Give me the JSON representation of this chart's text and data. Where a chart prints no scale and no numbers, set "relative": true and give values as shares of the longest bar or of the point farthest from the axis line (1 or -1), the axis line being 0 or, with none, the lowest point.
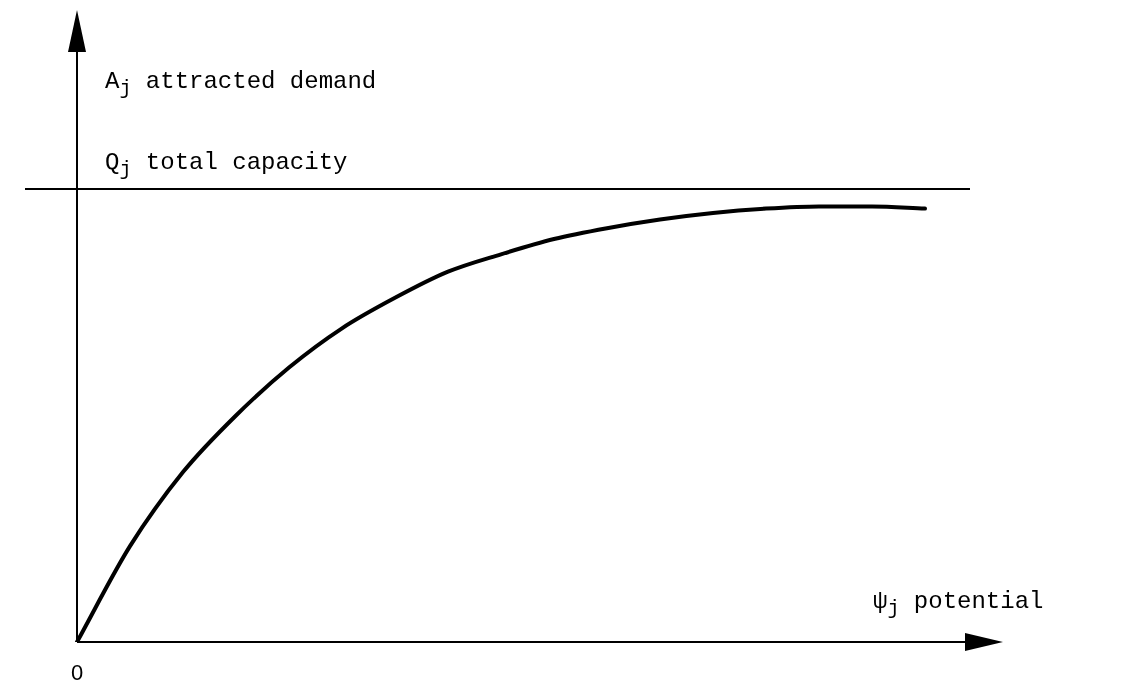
{
  "chart_data": {
    "type": "line",
    "relative": true,
    "xlabel": "ψ$_{j}$ potential",
    "ylabel": "A$_{j}$ attracted demand",
    "categories": [
      null,
      null,
      null,
      null,
      null,
      null,
      null,
      null,
      null,
      null,
      null,
      null,
      null,
      null,
      null,
      null,
      null
    ],
    "values": [
      0,
      0.22,
      0.39,
      0.52,
      0.63,
      0.72,
      0.79,
      0.85,
      0.89,
      0.925,
      0.95,
      0.97,
      0.985,
      0.995,
      1.0,
      1.0,
      0.995
    ],
    "color": "#000000",
    "marker": "none",
    "line_style": "solid",
    "legend": false,
    "ref_lines": [
      {
        "axis": "y",
        "value": 1.04,
        "label": "Q$_{j}$ total capacity",
        "color": "#000000"
      }
    ],
    "annotations": [
      "0"
    ]
  }
}
